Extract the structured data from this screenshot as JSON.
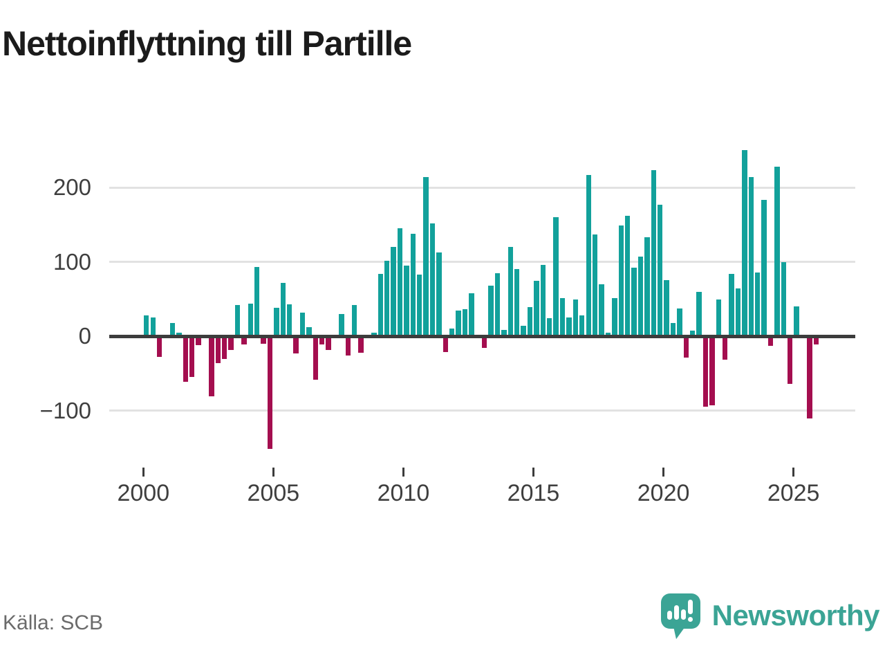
{
  "title": "Nettoinflyttning till Partille",
  "source_note": "Källa: SCB",
  "branding": {
    "logo_text": "Newsworthy",
    "logo_icon": "newsworthy-speech-bubble-bar-chart-icon",
    "brand_color": "#3ba495"
  },
  "colors": {
    "positive_bar": "#12a19b",
    "negative_bar": "#a40e4f",
    "axis_line": "#3c3c3c",
    "gridline": "#e2e2e2",
    "axis_text": "#3f3f3f",
    "title_text": "#1b1b1b",
    "source_text": "#6b6b6b"
  },
  "chart_data": {
    "type": "bar",
    "title": "Nettoinflyttning till Partille",
    "xlabel": "",
    "ylabel": "",
    "x_unit": "quarter",
    "x_freq": "quarterly",
    "x_start": "2000 Q1",
    "x_end": "2025 Q4",
    "grid": true,
    "legend": false,
    "ylim": [
      -170,
      270
    ],
    "y_ticks": [
      200,
      100,
      0,
      -100
    ],
    "y_tick_labels": [
      "200",
      "100",
      "0",
      "−100"
    ],
    "x_tick_labels": [
      "2000",
      "2005",
      "2010",
      "2015",
      "2020",
      "2025"
    ],
    "x_tick_years": [
      2000,
      2005,
      2010,
      2015,
      2020,
      2025
    ],
    "values": [
      28,
      25,
      -28,
      0,
      18,
      5,
      -61,
      -55,
      -12,
      2,
      -81,
      -36,
      -31,
      -19,
      42,
      -11,
      44,
      93,
      -10,
      -152,
      38,
      72,
      43,
      -23,
      32,
      12,
      -59,
      -11,
      -19,
      0,
      30,
      -26,
      42,
      -22,
      0,
      5,
      84,
      101,
      120,
      145,
      95,
      138,
      83,
      214,
      152,
      113,
      -21,
      10,
      34,
      36,
      58,
      0,
      -16,
      68,
      85,
      8,
      120,
      90,
      14,
      39,
      74,
      96,
      24,
      160,
      51,
      25,
      49,
      28,
      217,
      137,
      70,
      5,
      51,
      149,
      162,
      92,
      107,
      133,
      223,
      177,
      75,
      18,
      37,
      -29,
      7,
      60,
      -95,
      -93,
      49,
      -32,
      84,
      64,
      250,
      214,
      86,
      183,
      -13,
      228,
      100,
      -64,
      40,
      0,
      -111,
      -11
    ]
  }
}
